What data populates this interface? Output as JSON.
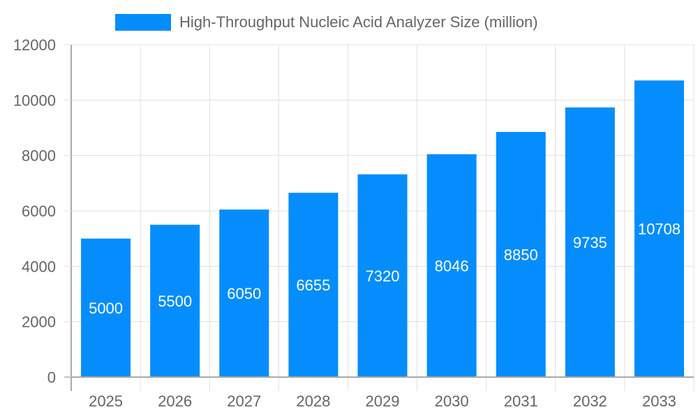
{
  "chart_data": {
    "type": "bar",
    "title": "",
    "categories": [
      "2025",
      "2026",
      "2027",
      "2028",
      "2029",
      "2030",
      "2031",
      "2032",
      "2033"
    ],
    "series": [
      {
        "name": "High-Throughput Nucleic Acid Analyzer Size (million)",
        "values": [
          5000,
          5500,
          6050,
          6655,
          7320,
          8046,
          8850,
          9735,
          10708
        ],
        "color": "#058DFE"
      }
    ],
    "xlabel": "",
    "ylabel": "",
    "ylim": [
      0,
      12000
    ],
    "yticks": [
      0,
      2000,
      4000,
      6000,
      8000,
      10000,
      12000
    ],
    "grid": true,
    "legend_position": "top",
    "data_labels": "center-inside"
  },
  "legend": {
    "label": "High-Throughput Nucleic Acid Analyzer Size (million)",
    "color": "#058DFE"
  },
  "colors": {
    "bar": "#058DFE",
    "grid": "#e0e0e0",
    "axis": "#aaaaaa",
    "text": "#666666",
    "data_label": "#ffffff"
  }
}
